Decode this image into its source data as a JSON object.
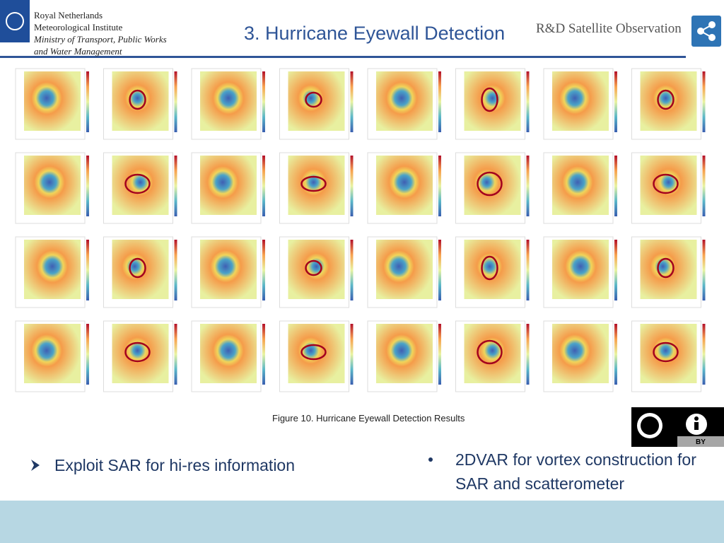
{
  "header": {
    "organization": [
      "Royal Netherlands",
      "Meteorological Institute",
      "Ministry of Transport, Public Works",
      "and Water Management"
    ],
    "title": "3. Hurricane Eyewall Detection",
    "department": "R&D Satellite Observation"
  },
  "figure": {
    "caption": "Figure 10. Hurricane Eyewall Detection Results"
  },
  "license": {
    "badge": "BY"
  },
  "bullets": [
    "Exploit SAR for hi-res information",
    "2DVAR for vortex construction for SAR and scatterometer"
  ]
}
